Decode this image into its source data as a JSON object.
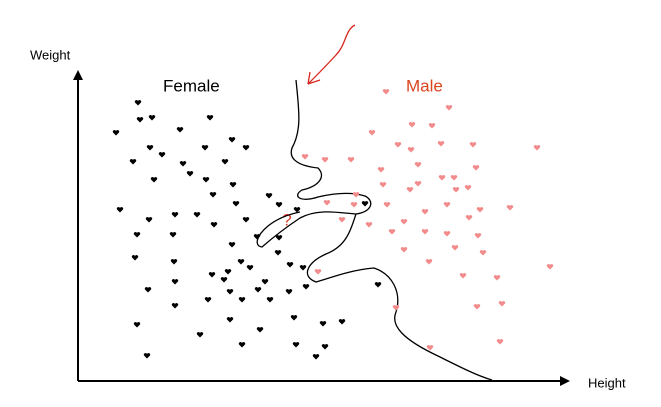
{
  "chart_data": {
    "type": "scatter",
    "x_label": "Height",
    "y_label": "Weight",
    "annotation": "?",
    "xlim": [
      0,
      487
    ],
    "ylim": [
      0,
      306
    ],
    "series": [
      {
        "name": "Female",
        "color": "#000000",
        "x": [
          60,
          74,
          62,
          38,
          132,
          102,
          72,
          55,
          84,
          127,
          154,
          168,
          147,
          105,
          112,
          128,
          76,
          155,
          135,
          158,
          42,
          97,
          119,
          71,
          136,
          168,
          59,
          95,
          154,
          191,
          201,
          219,
          179,
          201,
          200,
          163,
          150,
          134,
          96,
          172,
          146,
          187,
          212,
          225,
          57,
          97,
          70,
          130,
          152,
          180,
          211,
          228,
          164,
          192,
          97,
          59,
          122,
          152,
          182,
          216,
          245,
          264,
          164,
          218,
          247,
          69,
          238,
          300,
          287
        ],
        "values": [
          278,
          263,
          261,
          248,
          263,
          251,
          233,
          219,
          226,
          233,
          241,
          233,
          219,
          217,
          207,
          201,
          201,
          196,
          186,
          177,
          171,
          166,
          166,
          161,
          156,
          161,
          146,
          146,
          136,
          185,
          176,
          171,
          144,
          143,
          128,
          119,
          109,
          106,
          119,
          113,
          101,
          99,
          116,
          113,
          123,
          99,
          91,
          81,
          89,
          91,
          89,
          94,
          81,
          81,
          75,
          56,
          46,
          61,
          51,
          63,
          57,
          59,
          36,
          36,
          34,
          25,
          24,
          96,
          177
        ]
      },
      {
        "name": "Male",
        "color": "#f28b8b",
        "x": [
          308,
          371,
          334,
          294,
          354,
          320,
          333,
          363,
          395,
          459,
          227,
          247,
          273,
          303,
          340,
          398,
          364,
          376,
          340,
          390,
          332,
          378,
          305,
          278,
          249,
          276,
          264,
          309,
          369,
          402,
          432,
          347,
          391,
          291,
          326,
          314,
          347,
          369,
          400,
          377,
          405,
          326,
          351,
          472,
          385,
          419,
          318,
          399,
          424,
          352,
          422,
          240
        ],
        "values": [
          289,
          273,
          256,
          248,
          255,
          236,
          231,
          237,
          236,
          233,
          224,
          221,
          221,
          211,
          216,
          213,
          203,
          203,
          197,
          193,
          191,
          191,
          196,
          186,
          178,
          176,
          161,
          176,
          176,
          171,
          173,
          169,
          163,
          156,
          159,
          149,
          149,
          147,
          145,
          133,
          128,
          131,
          119,
          114,
          105,
          103,
          73,
          74,
          77,
          33,
          39,
          109
        ]
      }
    ]
  }
}
